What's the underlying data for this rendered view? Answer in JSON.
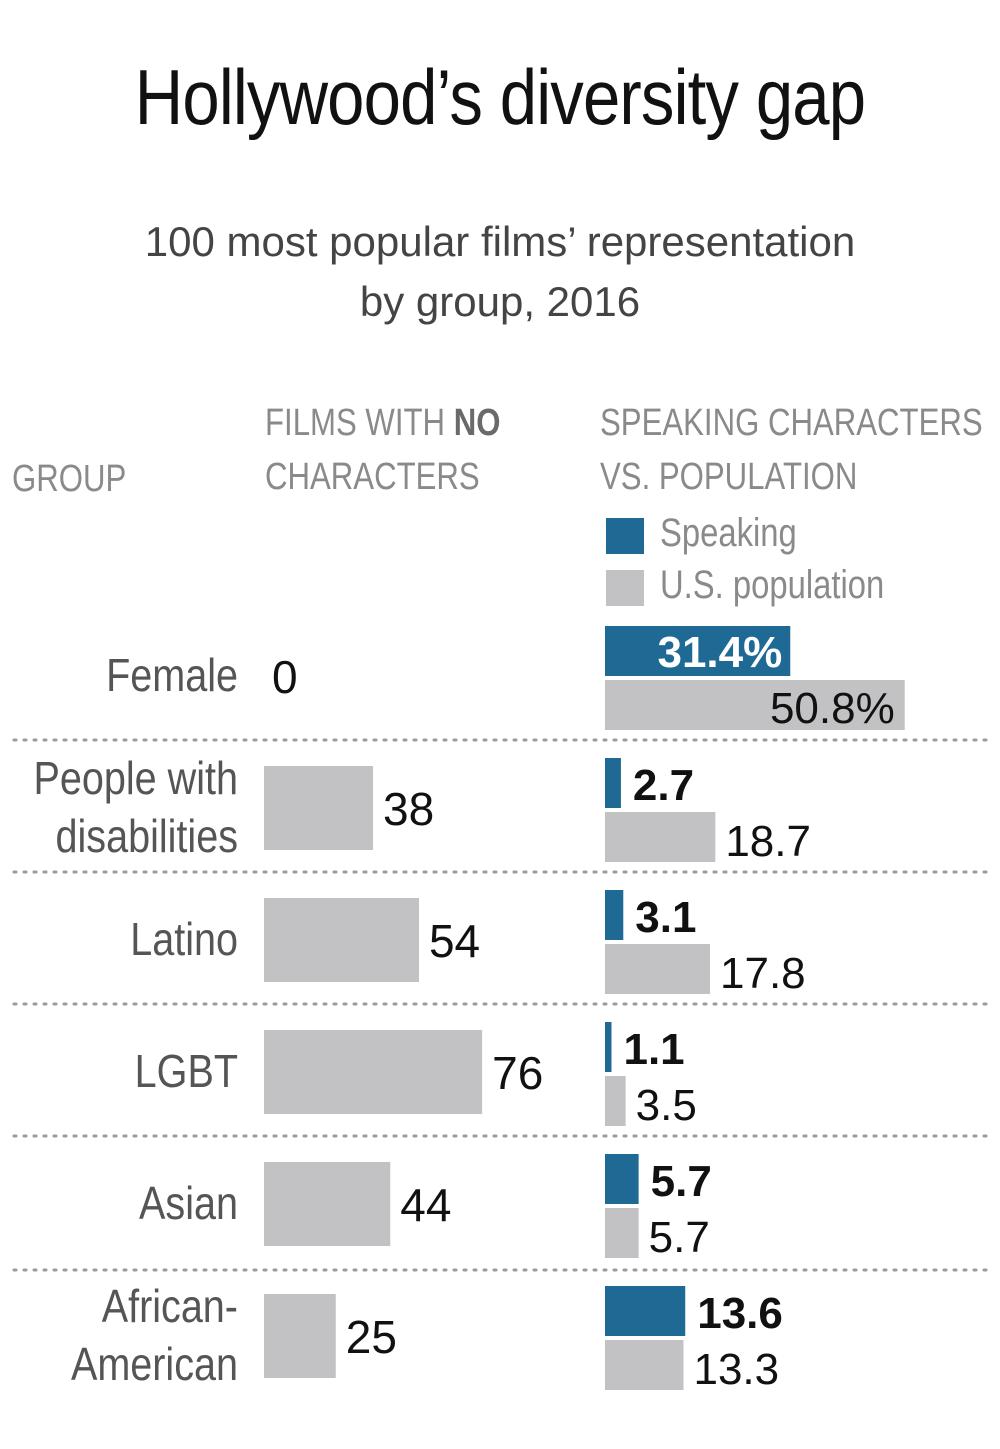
{
  "title": "Hollywood’s diversity gap",
  "subtitle": [
    "100 most popular films’ representation",
    "by group, 2016"
  ],
  "columns": {
    "group": "GROUP",
    "films_line1_prefix": "FILMS WITH ",
    "films_line1_bold": "NO",
    "films_line2": "CHARACTERS",
    "speaking_line1": "SPEAKING CHARACTERS",
    "speaking_line2": "VS. POPULATION"
  },
  "legend": {
    "speaking": "Speaking",
    "population": "U.S. population"
  },
  "colors": {
    "speaking": "#1f6a94",
    "population": "#c2c2c4",
    "films": "#c2c2c4",
    "divider": "#9a9a9a",
    "group_text": "#555555"
  },
  "chart_data": {
    "type": "bar",
    "title": "Hollywood’s diversity gap",
    "subtitle": "100 most popular films’ representation by group, 2016",
    "categories": [
      "Female",
      "People with disabilities",
      "Latino",
      "LGBT",
      "Asian",
      "African-American"
    ],
    "category_lines": [
      [
        "Female"
      ],
      [
        "People with",
        "disabilities"
      ],
      [
        "Latino"
      ],
      [
        "LGBT"
      ],
      [
        "Asian"
      ],
      [
        "African-",
        "American"
      ]
    ],
    "films_with_no_characters": {
      "values": [
        0,
        38,
        54,
        76,
        44,
        25
      ],
      "labels": [
        "0",
        "38",
        "54",
        "76",
        "44",
        "25"
      ]
    },
    "series": [
      {
        "name": "Speaking",
        "values": [
          31.4,
          2.7,
          3.1,
          1.1,
          5.7,
          13.6
        ],
        "labels": [
          "31.4%",
          "2.7",
          "3.1",
          "1.1",
          "5.7",
          "13.6"
        ]
      },
      {
        "name": "U.S. population",
        "values": [
          50.8,
          18.7,
          17.8,
          3.5,
          5.7,
          13.3
        ],
        "labels": [
          "50.8%",
          "18.7",
          "17.8",
          "3.5",
          "5.7",
          "13.3"
        ]
      }
    ]
  }
}
